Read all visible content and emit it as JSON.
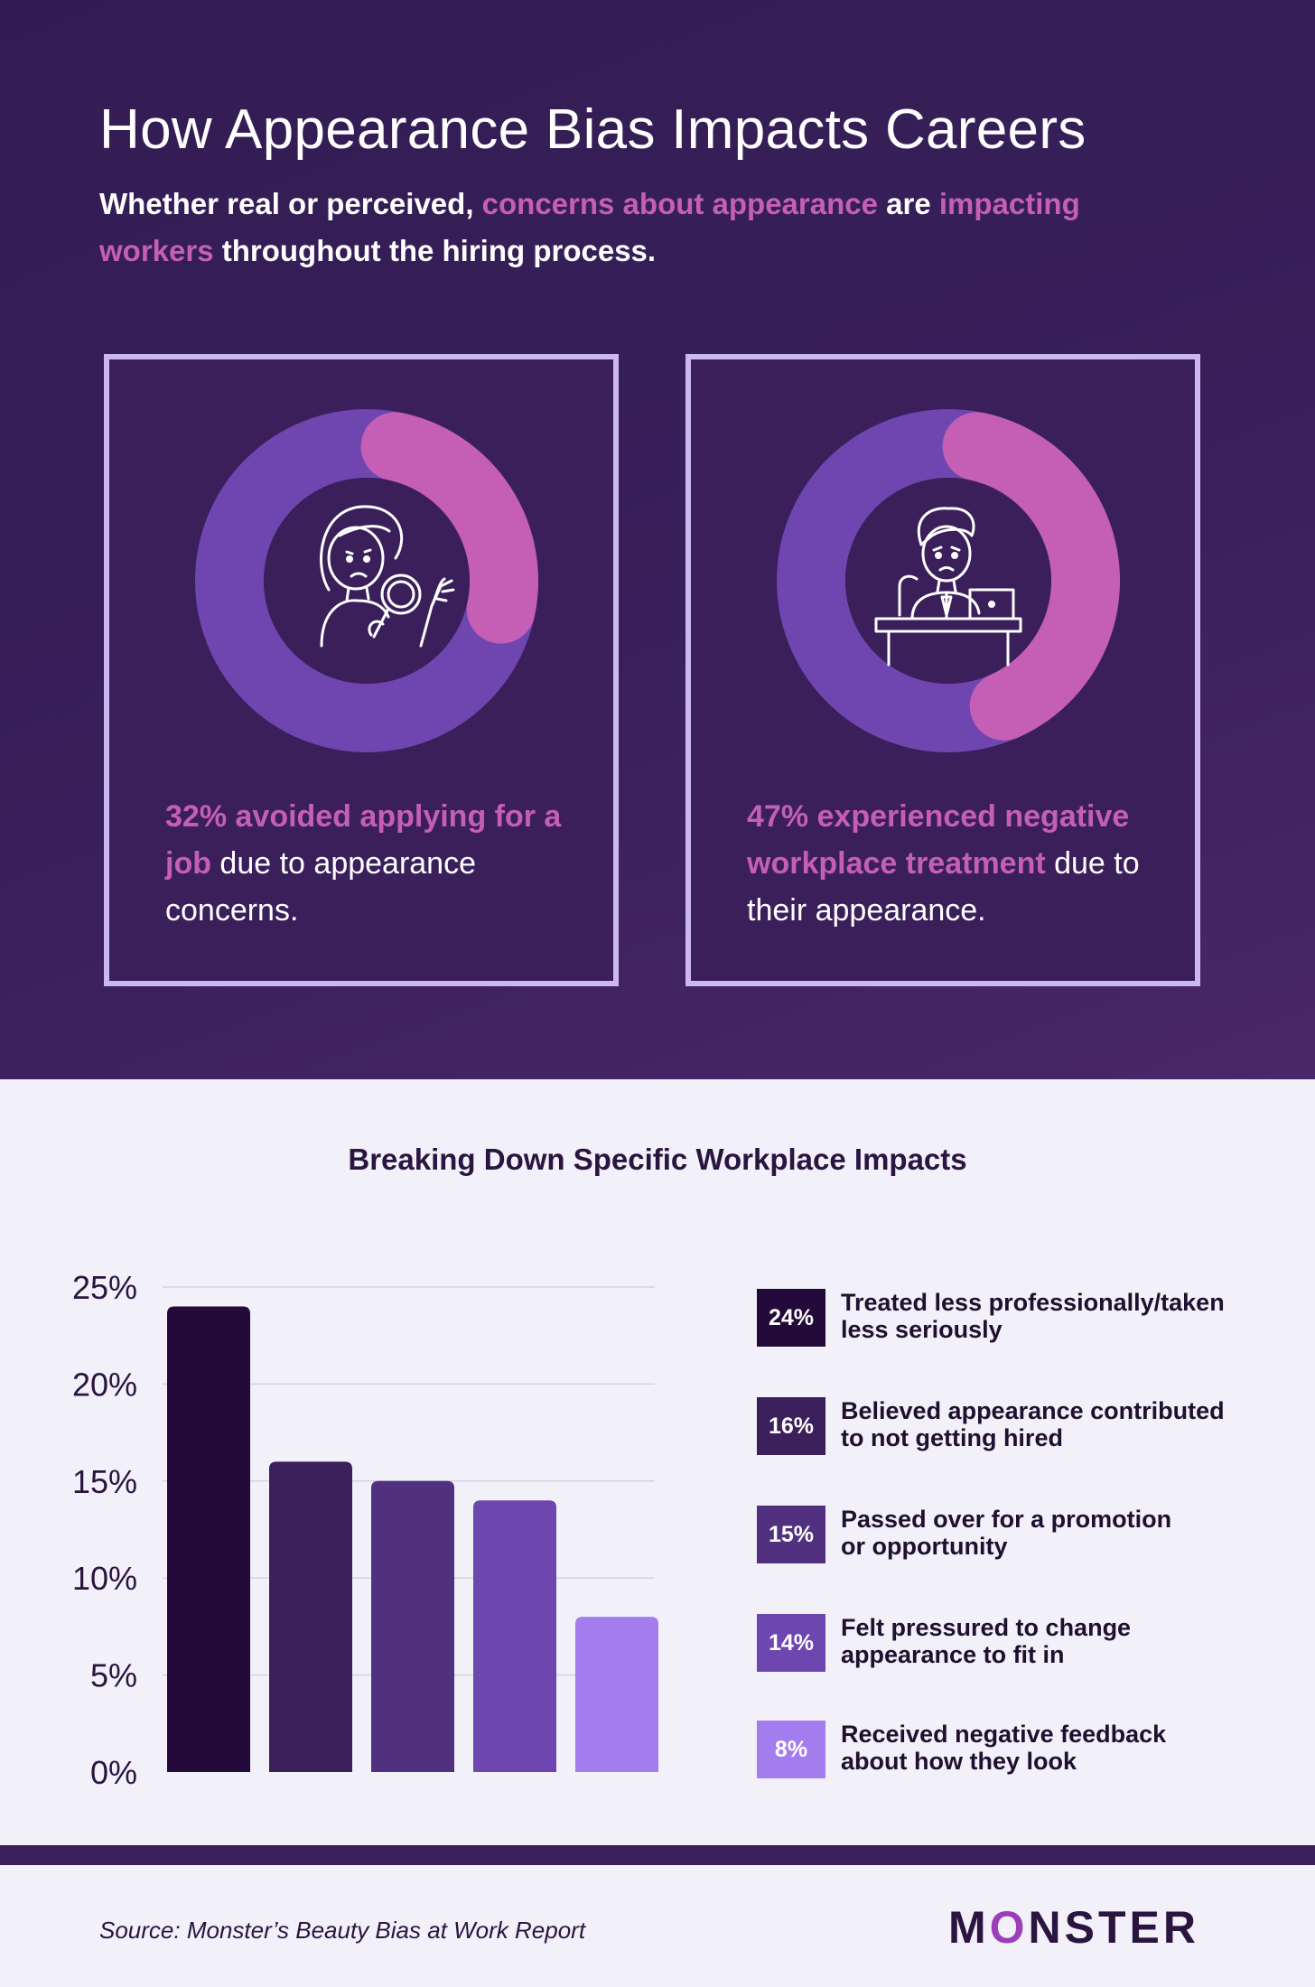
{
  "header": {
    "title": "How Appearance Bias Impacts Careers",
    "subtitle_parts": [
      "Whether real or perceived, ",
      "concerns about appearance",
      " are ",
      "impacting workers",
      " throughout the hiring process."
    ]
  },
  "cards": [
    {
      "percent": 32,
      "highlight": "32% avoided applying for a job",
      "text": " due to appearance concerns.",
      "icon": "woman-magnifying-glass-icon"
    },
    {
      "percent": 47,
      "highlight": "47% experienced negative workplace treatment",
      "text": " due to their appearance.",
      "icon": "man-at-laptop-icon"
    }
  ],
  "colors": {
    "hero_bg": "#381f5b",
    "accent_pink": "#c45fb5",
    "donut_track": "#6f46b0",
    "card_border": "#cbb8f0"
  },
  "chart_data": {
    "type": "bar",
    "title": "Breaking Down Specific Workplace Impacts",
    "categories": [
      "Treated less professionally/taken less seriously",
      "Believed appearance contributed to not getting hired",
      "Passed over for a promotion or opportunity",
      "Felt pressured to change appearance to fit in",
      "Received negative feedback about how they look"
    ],
    "values": [
      24,
      16,
      15,
      14,
      8
    ],
    "value_labels": [
      "24%",
      "16%",
      "15%",
      "14%",
      "8%"
    ],
    "colors": [
      "#230a3a",
      "#3a1f5b",
      "#50307f",
      "#6e46b0",
      "#a37ded"
    ],
    "ylim": [
      0,
      25
    ],
    "yticks": [
      "0%",
      "5%",
      "10%",
      "15%",
      "20%",
      "25%"
    ],
    "grid": true,
    "legend_placement": "right"
  },
  "legend_label_lines": [
    [
      "Treated less professionally/taken",
      "less seriously"
    ],
    [
      "Believed appearance contributed",
      "to not getting hired"
    ],
    [
      "Passed over for a promotion",
      "or opportunity"
    ],
    [
      "Felt pressured to change",
      "appearance to fit in"
    ],
    [
      "Received negative feedback",
      "about how they look"
    ]
  ],
  "footer": {
    "source": "Source: Monster’s Beauty Bias at Work Report",
    "logo": [
      "M",
      "O",
      "NSTER"
    ]
  }
}
